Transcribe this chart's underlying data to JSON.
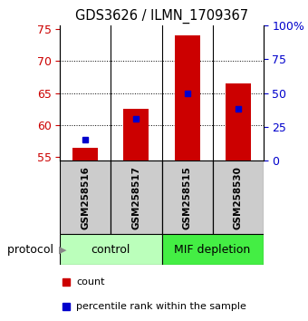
{
  "title": "GDS3626 / ILMN_1709367",
  "samples": [
    "GSM258516",
    "GSM258517",
    "GSM258515",
    "GSM258530"
  ],
  "counts": [
    56.5,
    62.5,
    74.0,
    66.5
  ],
  "percentile_ranks": [
    57.8,
    61.0,
    65.0,
    62.5
  ],
  "ylim_left": [
    54.5,
    75.5
  ],
  "ylim_right": [
    0,
    100
  ],
  "yticks_left": [
    55,
    60,
    65,
    70,
    75
  ],
  "yticks_right": [
    0,
    25,
    50,
    75,
    100
  ],
  "ytick_labels_right": [
    "0",
    "25",
    "50",
    "75",
    "100%"
  ],
  "bar_color": "#cc0000",
  "dot_color": "#0000cc",
  "groups": [
    {
      "label": "control",
      "indices": [
        0,
        1
      ],
      "color": "#bbffbb"
    },
    {
      "label": "MIF depletion",
      "indices": [
        2,
        3
      ],
      "color": "#44ee44"
    }
  ],
  "group_row_label": "protocol",
  "legend_items": [
    {
      "color": "#cc0000",
      "label": "count"
    },
    {
      "color": "#0000cc",
      "label": "percentile rank within the sample"
    }
  ],
  "bar_width": 0.5,
  "background_color": "#ffffff",
  "plot_bg_color": "#ffffff",
  "tick_area_bg": "#cccccc"
}
